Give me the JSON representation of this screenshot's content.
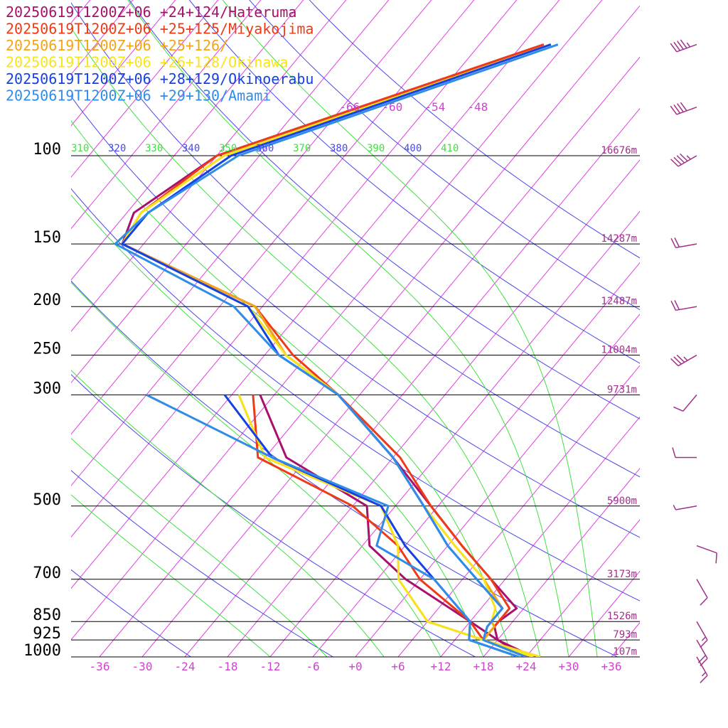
{
  "chart_data": {
    "type": "line",
    "chart_kind": "skew-T log-p diagram",
    "legend_position": "top-left",
    "colors": {
      "isotherm": "#e040e0",
      "dry_adiabat": "#4848e8",
      "moist_adiabat": "#40e040",
      "isobar": "#000000",
      "label_magenta": "#a0308a"
    },
    "pressure_levels": [
      {
        "p": 100,
        "label": "100",
        "height": "16676m"
      },
      {
        "p": 150,
        "label": "150",
        "height": "14287m"
      },
      {
        "p": 200,
        "label": "200",
        "height": "12487m"
      },
      {
        "p": 250,
        "label": "250",
        "height": "11004m"
      },
      {
        "p": 300,
        "label": "300",
        "height": "9731m"
      },
      {
        "p": 500,
        "label": "500",
        "height": "5900m"
      },
      {
        "p": 700,
        "label": "700",
        "height": "3173m"
      },
      {
        "p": 850,
        "label": "850",
        "height": "1526m"
      },
      {
        "p": 925,
        "label": "925",
        "height": "793m"
      },
      {
        "p": 1000,
        "label": "1000",
        "height": "107m"
      }
    ],
    "temperature_ticks": [
      "-36",
      "-30",
      "-24",
      "-18",
      "-12",
      "-6",
      "+0",
      "+6",
      "+12",
      "+18",
      "+24",
      "+30",
      "+36"
    ],
    "temperature_tick_values": [
      -36,
      -30,
      -24,
      -18,
      -12,
      -6,
      0,
      6,
      12,
      18,
      24,
      30,
      36
    ],
    "upper_isotherm_labels": [
      {
        "label": "-66",
        "t": -66
      },
      {
        "label": "-60",
        "t": -60
      },
      {
        "label": "-54",
        "t": -54
      },
      {
        "label": "-48",
        "t": -48
      }
    ],
    "theta_labels": [
      {
        "label": "310",
        "kind": "moist"
      },
      {
        "label": "320",
        "kind": "dry"
      },
      {
        "label": "330",
        "kind": "moist"
      },
      {
        "label": "340",
        "kind": "dry"
      },
      {
        "label": "350",
        "kind": "moist"
      },
      {
        "label": "360",
        "kind": "dry"
      },
      {
        "label": "370",
        "kind": "moist"
      },
      {
        "label": "380",
        "kind": "dry"
      },
      {
        "label": "390",
        "kind": "moist"
      },
      {
        "label": "400",
        "kind": "dry"
      },
      {
        "label": "410",
        "kind": "moist"
      }
    ],
    "series": [
      {
        "name": "20250619T1200Z+06 +24+124/Hateruma",
        "color": "#a8106c",
        "temperature": [
          [
            60,
            -45
          ],
          [
            100,
            -78
          ],
          [
            130,
            -83
          ],
          [
            150,
            -81
          ],
          [
            200,
            -55
          ],
          [
            250,
            -45
          ],
          [
            300,
            -33
          ],
          [
            400,
            -18
          ],
          [
            500,
            -7
          ],
          [
            600,
            2
          ],
          [
            700,
            10
          ],
          [
            800,
            17
          ],
          [
            850,
            16
          ],
          [
            870,
            16
          ],
          [
            925,
            18
          ],
          [
            1000,
            25
          ]
        ],
        "dewpoint": [
          [
            300,
            -44
          ],
          [
            400,
            -33
          ],
          [
            500,
            -16
          ],
          [
            600,
            -11
          ],
          [
            700,
            -2
          ],
          [
            850,
            12
          ],
          [
            925,
            18
          ],
          [
            1000,
            24
          ]
        ]
      },
      {
        "name": "20250619T1200Z+06 +25+125/Miyakojima",
        "color": "#ee3a16",
        "temperature": [
          [
            60,
            -45
          ],
          [
            100,
            -78
          ],
          [
            130,
            -82
          ],
          [
            150,
            -81
          ],
          [
            200,
            -55
          ],
          [
            250,
            -44
          ],
          [
            300,
            -33
          ],
          [
            400,
            -17
          ],
          [
            500,
            -7
          ],
          [
            600,
            2
          ],
          [
            700,
            10
          ],
          [
            800,
            16
          ],
          [
            850,
            16
          ],
          [
            870,
            16
          ],
          [
            925,
            16
          ],
          [
            1000,
            26
          ]
        ],
        "dewpoint": [
          [
            300,
            -45
          ],
          [
            400,
            -37
          ],
          [
            500,
            -18
          ],
          [
            600,
            -7
          ],
          [
            700,
            0
          ],
          [
            850,
            12
          ],
          [
            925,
            16
          ],
          [
            1000,
            25
          ]
        ]
      },
      {
        "name": "20250619T1200Z+06 +25+126/",
        "color": "#f4a414",
        "temperature": [
          [
            60,
            -44
          ],
          [
            100,
            -77
          ],
          [
            130,
            -82
          ],
          [
            150,
            -81
          ],
          [
            200,
            -55
          ],
          [
            250,
            -45
          ],
          [
            300,
            -33
          ],
          [
            400,
            -18
          ],
          [
            500,
            -8
          ],
          [
            600,
            1
          ],
          [
            700,
            9
          ],
          [
            800,
            15
          ],
          [
            850,
            15
          ],
          [
            870,
            16
          ],
          [
            925,
            16
          ],
          [
            1000,
            26
          ]
        ],
        "dewpoint": [
          [
            300,
            -47
          ],
          [
            400,
            -36
          ],
          [
            500,
            -14
          ],
          [
            600,
            -7
          ],
          [
            700,
            -3
          ],
          [
            850,
            6
          ],
          [
            925,
            16
          ],
          [
            1000,
            25
          ]
        ]
      },
      {
        "name": "20250619T1200Z+06 +26+128/Okinawa",
        "color": "#f8e41c",
        "temperature": [
          [
            60,
            -44
          ],
          [
            100,
            -77
          ],
          [
            130,
            -82
          ],
          [
            150,
            -81
          ],
          [
            200,
            -56
          ],
          [
            250,
            -45
          ],
          [
            300,
            -33
          ],
          [
            400,
            -18
          ],
          [
            500,
            -8
          ],
          [
            600,
            1
          ],
          [
            700,
            9
          ],
          [
            800,
            14
          ],
          [
            850,
            15
          ],
          [
            870,
            15
          ],
          [
            925,
            16
          ],
          [
            1000,
            26
          ]
        ],
        "dewpoint": [
          [
            300,
            -47
          ],
          [
            400,
            -36
          ],
          [
            500,
            -14
          ],
          [
            600,
            -7
          ],
          [
            700,
            -3
          ],
          [
            850,
            6
          ],
          [
            925,
            16
          ],
          [
            1000,
            25
          ]
        ]
      },
      {
        "name": "20250619T1200Z+06 +28+129/Okinoerabu",
        "color": "#1440e4",
        "temperature": [
          [
            60,
            -44
          ],
          [
            100,
            -76
          ],
          [
            130,
            -81
          ],
          [
            150,
            -81
          ],
          [
            200,
            -56
          ],
          [
            250,
            -46
          ],
          [
            300,
            -33
          ],
          [
            400,
            -18
          ],
          [
            500,
            -8
          ],
          [
            600,
            0
          ],
          [
            700,
            8
          ],
          [
            800,
            15
          ],
          [
            850,
            15
          ],
          [
            870,
            15
          ],
          [
            925,
            16
          ],
          [
            1000,
            24
          ]
        ],
        "dewpoint": [
          [
            300,
            -49
          ],
          [
            400,
            -35
          ],
          [
            500,
            -14
          ],
          [
            600,
            -6
          ],
          [
            700,
            2
          ],
          [
            850,
            12
          ],
          [
            925,
            14
          ],
          [
            1000,
            23
          ]
        ]
      },
      {
        "name": "20250619T1200Z+06 +29+130/Amami",
        "color": "#2f8ce8",
        "temperature": [
          [
            60,
            -43
          ],
          [
            100,
            -75
          ],
          [
            130,
            -81
          ],
          [
            150,
            -82
          ],
          [
            200,
            -58
          ],
          [
            250,
            -46
          ],
          [
            300,
            -33
          ],
          [
            400,
            -18
          ],
          [
            500,
            -8
          ],
          [
            600,
            0
          ],
          [
            700,
            8
          ],
          [
            800,
            15
          ],
          [
            850,
            15
          ],
          [
            870,
            15
          ],
          [
            925,
            16
          ],
          [
            1000,
            24
          ]
        ],
        "dewpoint": [
          [
            300,
            -60
          ],
          [
            400,
            -35
          ],
          [
            500,
            -13
          ],
          [
            600,
            -10
          ],
          [
            700,
            2
          ],
          [
            850,
            12
          ],
          [
            925,
            14
          ],
          [
            1000,
            23
          ]
        ]
      }
    ],
    "wind_barbs": [
      {
        "p": 60,
        "dir": 250,
        "kt": 45
      },
      {
        "p": 80,
        "dir": 250,
        "kt": 40
      },
      {
        "p": 100,
        "dir": 240,
        "kt": 45
      },
      {
        "p": 150,
        "dir": 260,
        "kt": 20
      },
      {
        "p": 200,
        "dir": 260,
        "kt": 20
      },
      {
        "p": 250,
        "dir": 240,
        "kt": 35
      },
      {
        "p": 300,
        "dir": 220,
        "kt": 10
      },
      {
        "p": 400,
        "dir": 270,
        "kt": 10
      },
      {
        "p": 500,
        "dir": 260,
        "kt": 5
      },
      {
        "p": 600,
        "dir": 110,
        "kt": 10
      },
      {
        "p": 700,
        "dir": 150,
        "kt": 10
      },
      {
        "p": 850,
        "dir": 150,
        "kt": 15
      },
      {
        "p": 925,
        "dir": 150,
        "kt": 20
      },
      {
        "p": 1000,
        "dir": 150,
        "kt": 15
      }
    ]
  }
}
